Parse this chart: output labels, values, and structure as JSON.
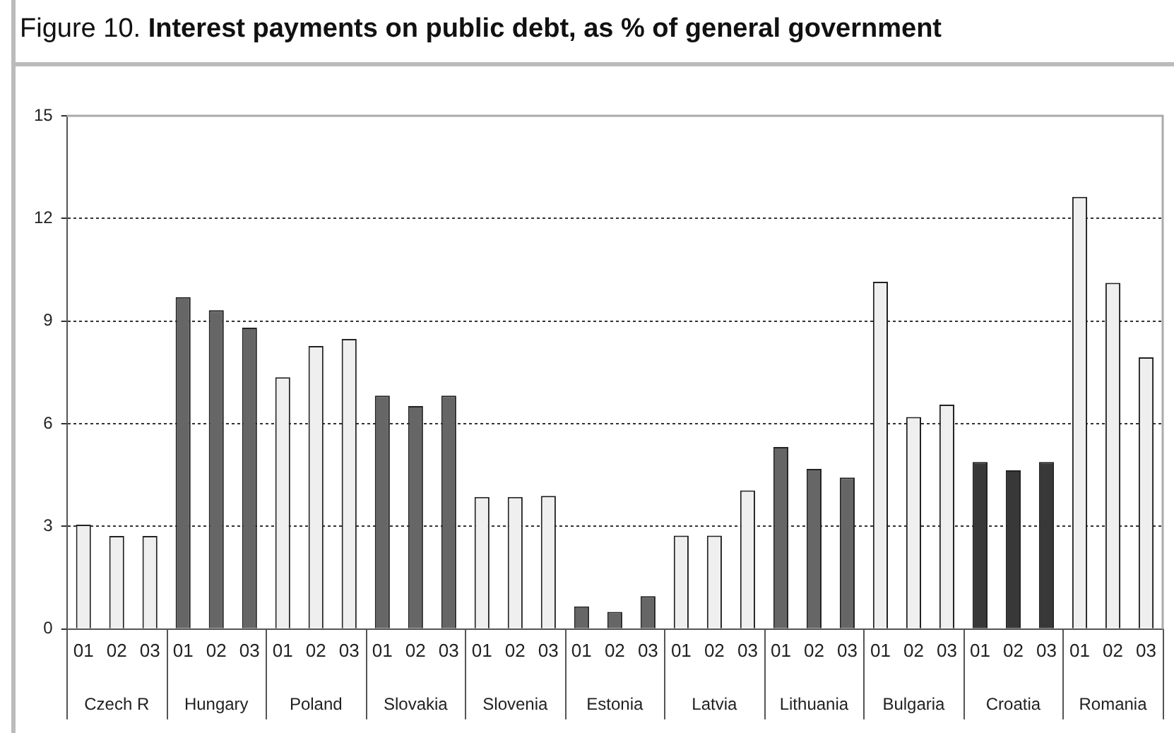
{
  "chart_data": {
    "type": "bar",
    "title": "Figure 10. Interest payments on public debt, as % of general government",
    "categories": [
      "01",
      "02",
      "03",
      "01",
      "02",
      "03",
      "01",
      "02",
      "03",
      "01",
      "02",
      "03",
      "01",
      "02",
      "03",
      "01",
      "02",
      "03",
      "01",
      "02",
      "03",
      "01",
      "02",
      "03",
      "01",
      "02",
      "03",
      "01",
      "02",
      "03",
      "01",
      "02",
      "03"
    ],
    "values": [
      3.05,
      2.72,
      2.72,
      9.7,
      9.32,
      8.81,
      7.36,
      8.27,
      8.48,
      6.82,
      6.52,
      6.82,
      3.86,
      3.86,
      3.89,
      0.66,
      0.5,
      0.96,
      2.73,
      2.73,
      4.05,
      5.32,
      4.68,
      4.43,
      10.15,
      6.2,
      6.56,
      4.88,
      4.64,
      4.88,
      12.63,
      10.12,
      7.94
    ],
    "colors": [
      "#efefef",
      "#efefef",
      "#efefef",
      "#666666",
      "#666666",
      "#666666",
      "#efefef",
      "#efefef",
      "#efefef",
      "#666666",
      "#666666",
      "#666666",
      "#efefef",
      "#efefef",
      "#efefef",
      "#666666",
      "#666666",
      "#666666",
      "#efefef",
      "#efefef",
      "#efefef",
      "#666666",
      "#666666",
      "#666666",
      "#efefef",
      "#efefef",
      "#efefef",
      "#383838",
      "#383838",
      "#383838",
      "#efefef",
      "#efefef",
      "#efefef"
    ],
    "annotations": [
      "Czech R",
      "Hungary",
      "Poland",
      "Slovakia",
      "Slovenia",
      "Estonia",
      "Latvia",
      "Lithuania",
      "Bulgaria",
      "Croatia",
      "Romania"
    ],
    "ylim": [
      0,
      15
    ],
    "yticks": [
      0,
      3,
      6,
      9,
      12,
      15
    ],
    "grid": "y",
    "legend": false
  }
}
